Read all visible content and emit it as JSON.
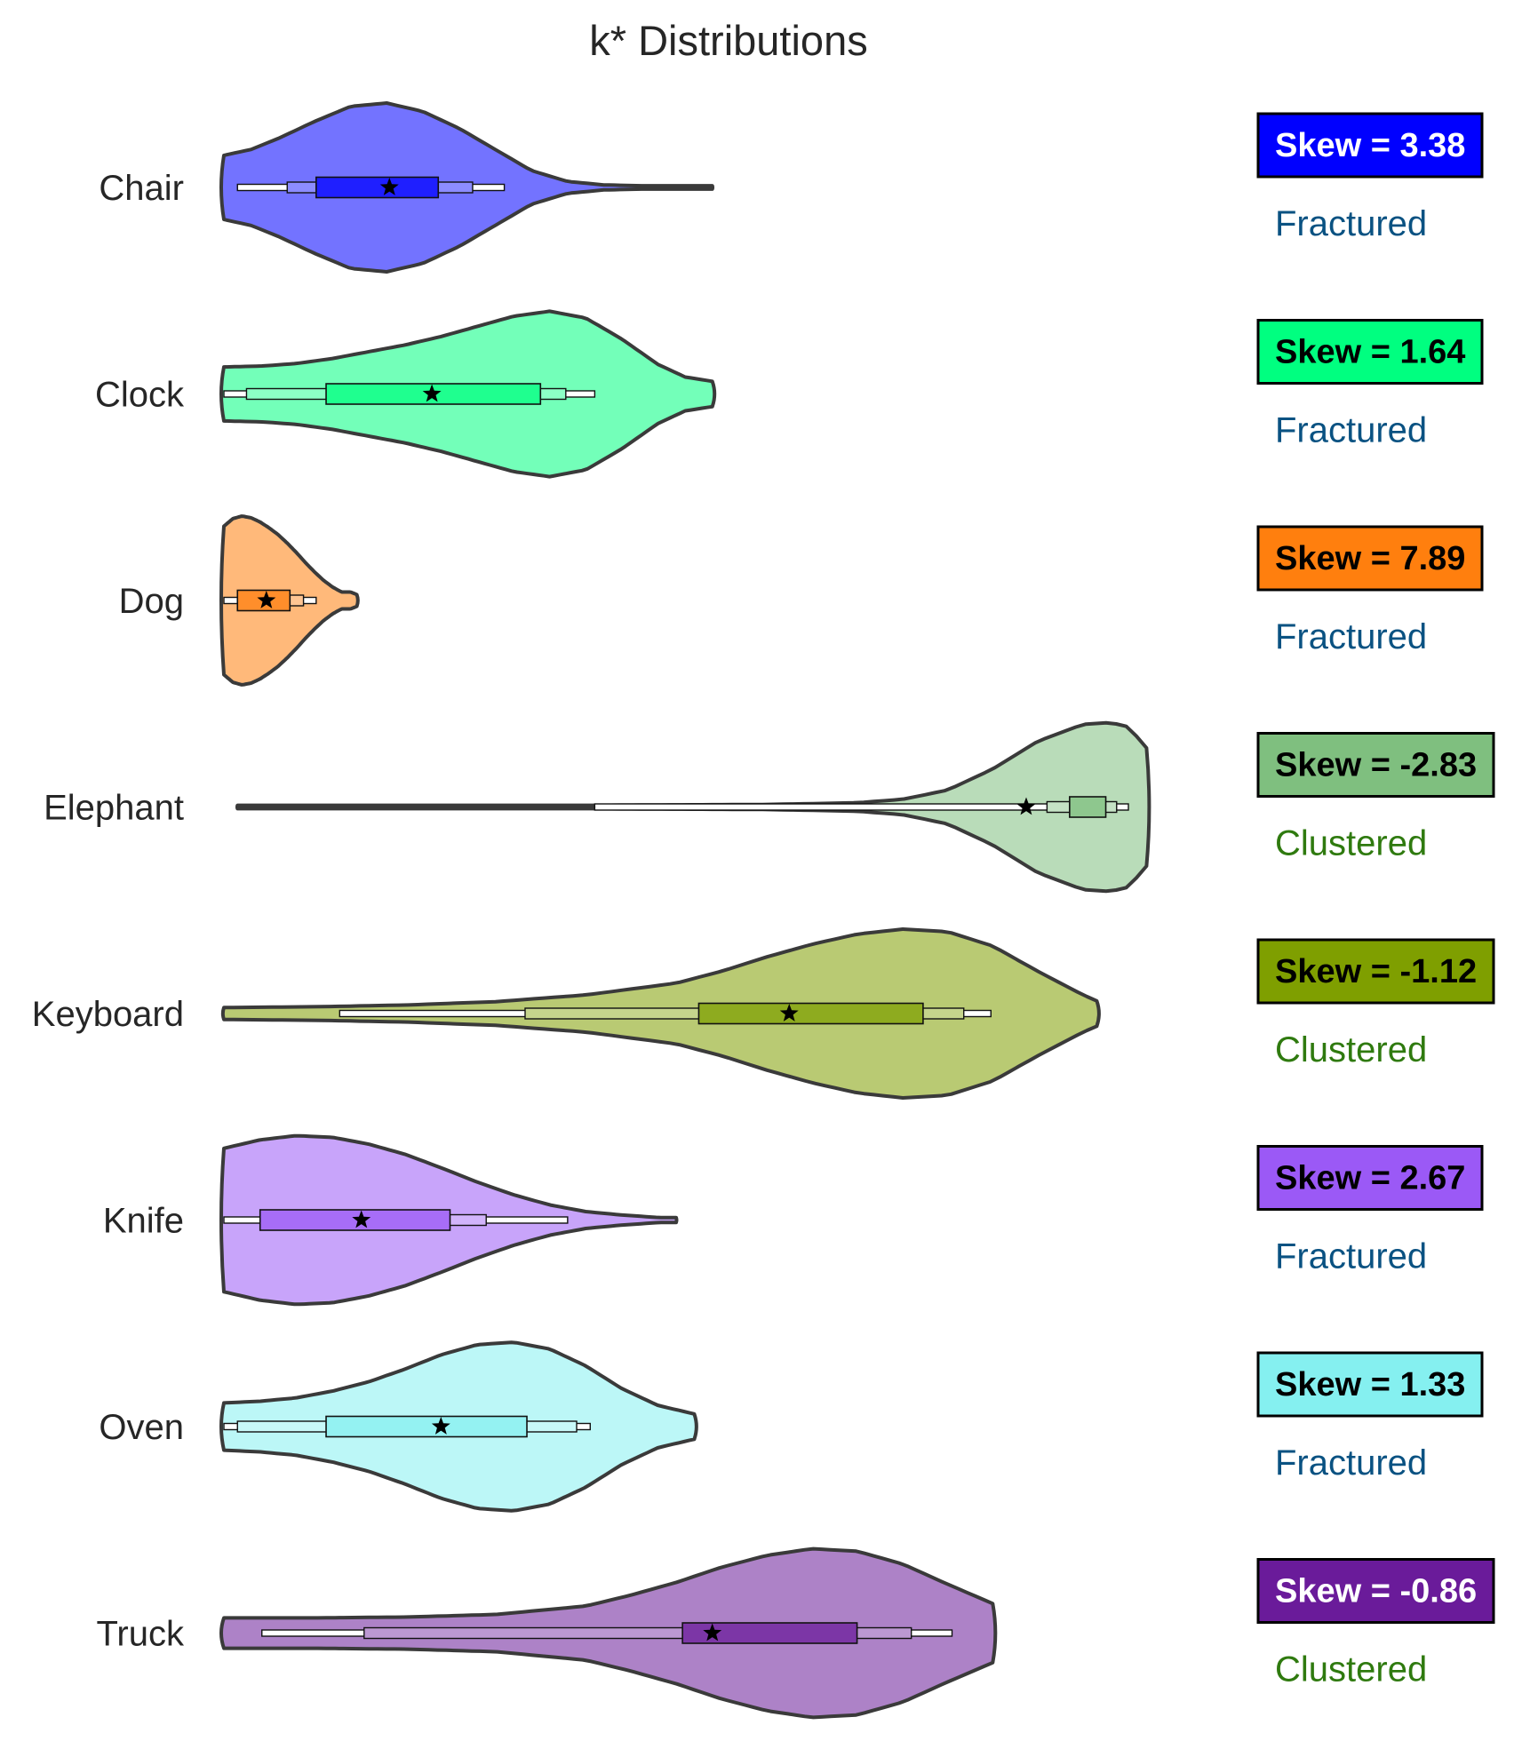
{
  "chart_data": {
    "type": "violin",
    "title": "k* Distributions",
    "xlabel": "",
    "ylabel": "",
    "grid": false,
    "categories": [
      "Chair",
      "Clock",
      "Dog",
      "Elephant",
      "Keyboard",
      "Knife",
      "Oven",
      "Truck"
    ],
    "series": [
      {
        "name": "Chair",
        "color": "#0000ff",
        "skew_label": "Skew = 3.38",
        "skew": 3.38,
        "skew_text_color": "#ffffff",
        "status": "Fractured",
        "min": 0.0,
        "max": 0.54,
        "whisker_low": 0.015,
        "whisker_high": 0.31,
        "q10": 0.07,
        "q90": 0.275,
        "q1": 0.102,
        "q3": 0.237,
        "mean": 0.183,
        "kde_x": [
          0.0,
          0.03,
          0.06,
          0.1,
          0.14,
          0.18,
          0.22,
          0.26,
          0.3,
          0.34,
          0.38,
          0.42,
          0.46,
          0.5,
          0.54
        ],
        "kde_w": [
          0.38,
          0.45,
          0.58,
          0.78,
          0.96,
          1.0,
          0.9,
          0.7,
          0.45,
          0.2,
          0.07,
          0.03,
          0.02,
          0.02,
          0.02
        ]
      },
      {
        "name": "Clock",
        "color": "#00ff80",
        "skew_label": "Skew = 1.64",
        "skew": 1.64,
        "skew_text_color": "#000000",
        "status": "Fractured",
        "min": 0.0,
        "max": 0.54,
        "whisker_low": 0.0,
        "whisker_high": 0.41,
        "q10": 0.025,
        "q90": 0.378,
        "q1": 0.113,
        "q3": 0.35,
        "mean": 0.23,
        "kde_x": [
          0.0,
          0.04,
          0.08,
          0.12,
          0.16,
          0.2,
          0.24,
          0.28,
          0.32,
          0.36,
          0.4,
          0.44,
          0.48,
          0.51,
          0.54
        ],
        "kde_w": [
          0.32,
          0.33,
          0.36,
          0.42,
          0.5,
          0.58,
          0.68,
          0.8,
          0.92,
          0.98,
          0.9,
          0.65,
          0.35,
          0.2,
          0.15
        ]
      },
      {
        "name": "Dog",
        "color": "#ff7f0e",
        "skew_label": "Skew = 7.89",
        "skew": 7.89,
        "skew_text_color": "#000000",
        "status": "Fractured",
        "min": 0.0,
        "max": 0.147,
        "whisker_low": 0.0,
        "whisker_high": 0.102,
        "q10": 0.015,
        "q90": 0.088,
        "q1": 0.015,
        "q3": 0.073,
        "mean": 0.047,
        "kde_x": [
          0.0,
          0.01,
          0.02,
          0.03,
          0.04,
          0.05,
          0.06,
          0.07,
          0.08,
          0.09,
          0.1,
          0.11,
          0.12,
          0.13,
          0.14,
          0.147
        ],
        "kde_w": [
          0.88,
          0.97,
          1.0,
          0.98,
          0.93,
          0.86,
          0.78,
          0.68,
          0.57,
          0.45,
          0.34,
          0.24,
          0.16,
          0.1,
          0.1,
          0.07
        ]
      },
      {
        "name": "Elephant",
        "color": "#7fbf7f",
        "skew_label": "Skew = -2.83",
        "skew": -2.83,
        "skew_text_color": "#000000",
        "status": "Clustered",
        "min": 0.015,
        "max": 1.02,
        "whisker_low": 0.41,
        "whisker_high": 1.0,
        "q10": 0.91,
        "q90": 0.987,
        "q1": 0.935,
        "q3": 0.975,
        "mean": 0.887,
        "kde_x": [
          0.015,
          0.1,
          0.2,
          0.3,
          0.4,
          0.5,
          0.6,
          0.7,
          0.75,
          0.8,
          0.85,
          0.9,
          0.95,
          0.98,
          1.0,
          1.02
        ],
        "kde_w": [
          0.02,
          0.02,
          0.02,
          0.02,
          0.02,
          0.025,
          0.03,
          0.05,
          0.09,
          0.2,
          0.45,
          0.78,
          0.98,
          1.0,
          0.95,
          0.7
        ]
      },
      {
        "name": "Keyboard",
        "color": "#7f9f00",
        "skew_label": "Skew = -1.12",
        "skew": -1.12,
        "skew_text_color": "#000000",
        "status": "Clustered",
        "min": 0.0,
        "max": 0.965,
        "whisker_low": 0.128,
        "whisker_high": 0.848,
        "q10": 0.333,
        "q90": 0.818,
        "q1": 0.525,
        "q3": 0.773,
        "mean": 0.625,
        "kde_x": [
          0.0,
          0.1,
          0.2,
          0.3,
          0.4,
          0.5,
          0.55,
          0.6,
          0.65,
          0.7,
          0.75,
          0.8,
          0.85,
          0.9,
          0.95,
          0.965
        ],
        "kde_w": [
          0.07,
          0.08,
          0.1,
          0.14,
          0.22,
          0.36,
          0.5,
          0.67,
          0.82,
          0.94,
          1.0,
          0.97,
          0.8,
          0.5,
          0.22,
          0.15
        ]
      },
      {
        "name": "Knife",
        "color": "#9b59f6",
        "skew_label": "Skew = 2.67",
        "skew": 2.67,
        "skew_text_color": "#000000",
        "status": "Fractured",
        "min": 0.0,
        "max": 0.5,
        "whisker_low": 0.0,
        "whisker_high": 0.38,
        "q10": 0.04,
        "q90": 0.29,
        "q1": 0.04,
        "q3": 0.25,
        "mean": 0.152,
        "kde_x": [
          0.0,
          0.04,
          0.08,
          0.12,
          0.16,
          0.2,
          0.24,
          0.28,
          0.32,
          0.36,
          0.4,
          0.44,
          0.48,
          0.5
        ],
        "kde_w": [
          0.85,
          0.95,
          1.0,
          0.98,
          0.9,
          0.78,
          0.62,
          0.45,
          0.3,
          0.18,
          0.1,
          0.06,
          0.03,
          0.03
        ]
      },
      {
        "name": "Oven",
        "color": "#85f0f0",
        "skew_label": "Skew = 1.33",
        "skew": 1.33,
        "skew_text_color": "#000000",
        "status": "Fractured",
        "min": 0.0,
        "max": 0.52,
        "whisker_low": 0.0,
        "whisker_high": 0.405,
        "q10": 0.015,
        "q90": 0.39,
        "q1": 0.113,
        "q3": 0.335,
        "mean": 0.24,
        "kde_x": [
          0.0,
          0.04,
          0.08,
          0.12,
          0.16,
          0.2,
          0.24,
          0.28,
          0.32,
          0.36,
          0.4,
          0.44,
          0.48,
          0.52
        ],
        "kde_w": [
          0.28,
          0.3,
          0.34,
          0.42,
          0.53,
          0.68,
          0.85,
          0.97,
          1.0,
          0.92,
          0.72,
          0.45,
          0.25,
          0.15
        ]
      },
      {
        "name": "Truck",
        "color": "#6a1b9a",
        "skew_label": "Skew = -0.86",
        "skew": -0.86,
        "skew_text_color": "#ffffff",
        "status": "Clustered",
        "min": 0.0,
        "max": 0.85,
        "whisker_low": 0.042,
        "whisker_high": 0.805,
        "q10": 0.155,
        "q90": 0.76,
        "q1": 0.507,
        "q3": 0.7,
        "mean": 0.54,
        "kde_x": [
          0.0,
          0.1,
          0.2,
          0.3,
          0.4,
          0.45,
          0.5,
          0.55,
          0.6,
          0.65,
          0.7,
          0.75,
          0.8,
          0.85
        ],
        "kde_w": [
          0.18,
          0.18,
          0.19,
          0.22,
          0.32,
          0.45,
          0.6,
          0.78,
          0.92,
          1.0,
          0.97,
          0.82,
          0.58,
          0.35
        ]
      }
    ]
  },
  "status_colors": {
    "Fractured": "#0a5282",
    "Clustered": "#2f7a0f"
  },
  "outline_color": "#3a3a3a"
}
